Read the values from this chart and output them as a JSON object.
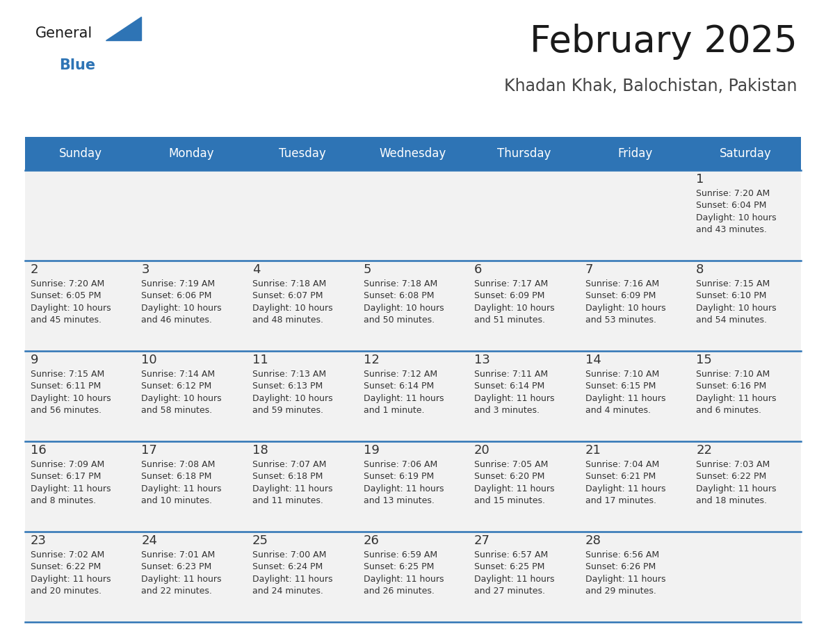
{
  "title": "February 2025",
  "subtitle": "Khadan Khak, Balochistan, Pakistan",
  "header_color": "#2E74B5",
  "header_text_color": "#FFFFFF",
  "cell_bg_color": "#F2F2F2",
  "cell_border_color": "#2E74B5",
  "text_color": "#333333",
  "day_headers": [
    "Sunday",
    "Monday",
    "Tuesday",
    "Wednesday",
    "Thursday",
    "Friday",
    "Saturday"
  ],
  "weeks": [
    [
      {
        "day": null,
        "info": null
      },
      {
        "day": null,
        "info": null
      },
      {
        "day": null,
        "info": null
      },
      {
        "day": null,
        "info": null
      },
      {
        "day": null,
        "info": null
      },
      {
        "day": null,
        "info": null
      },
      {
        "day": 1,
        "info": "Sunrise: 7:20 AM\nSunset: 6:04 PM\nDaylight: 10 hours\nand 43 minutes."
      }
    ],
    [
      {
        "day": 2,
        "info": "Sunrise: 7:20 AM\nSunset: 6:05 PM\nDaylight: 10 hours\nand 45 minutes."
      },
      {
        "day": 3,
        "info": "Sunrise: 7:19 AM\nSunset: 6:06 PM\nDaylight: 10 hours\nand 46 minutes."
      },
      {
        "day": 4,
        "info": "Sunrise: 7:18 AM\nSunset: 6:07 PM\nDaylight: 10 hours\nand 48 minutes."
      },
      {
        "day": 5,
        "info": "Sunrise: 7:18 AM\nSunset: 6:08 PM\nDaylight: 10 hours\nand 50 minutes."
      },
      {
        "day": 6,
        "info": "Sunrise: 7:17 AM\nSunset: 6:09 PM\nDaylight: 10 hours\nand 51 minutes."
      },
      {
        "day": 7,
        "info": "Sunrise: 7:16 AM\nSunset: 6:09 PM\nDaylight: 10 hours\nand 53 minutes."
      },
      {
        "day": 8,
        "info": "Sunrise: 7:15 AM\nSunset: 6:10 PM\nDaylight: 10 hours\nand 54 minutes."
      }
    ],
    [
      {
        "day": 9,
        "info": "Sunrise: 7:15 AM\nSunset: 6:11 PM\nDaylight: 10 hours\nand 56 minutes."
      },
      {
        "day": 10,
        "info": "Sunrise: 7:14 AM\nSunset: 6:12 PM\nDaylight: 10 hours\nand 58 minutes."
      },
      {
        "day": 11,
        "info": "Sunrise: 7:13 AM\nSunset: 6:13 PM\nDaylight: 10 hours\nand 59 minutes."
      },
      {
        "day": 12,
        "info": "Sunrise: 7:12 AM\nSunset: 6:14 PM\nDaylight: 11 hours\nand 1 minute."
      },
      {
        "day": 13,
        "info": "Sunrise: 7:11 AM\nSunset: 6:14 PM\nDaylight: 11 hours\nand 3 minutes."
      },
      {
        "day": 14,
        "info": "Sunrise: 7:10 AM\nSunset: 6:15 PM\nDaylight: 11 hours\nand 4 minutes."
      },
      {
        "day": 15,
        "info": "Sunrise: 7:10 AM\nSunset: 6:16 PM\nDaylight: 11 hours\nand 6 minutes."
      }
    ],
    [
      {
        "day": 16,
        "info": "Sunrise: 7:09 AM\nSunset: 6:17 PM\nDaylight: 11 hours\nand 8 minutes."
      },
      {
        "day": 17,
        "info": "Sunrise: 7:08 AM\nSunset: 6:18 PM\nDaylight: 11 hours\nand 10 minutes."
      },
      {
        "day": 18,
        "info": "Sunrise: 7:07 AM\nSunset: 6:18 PM\nDaylight: 11 hours\nand 11 minutes."
      },
      {
        "day": 19,
        "info": "Sunrise: 7:06 AM\nSunset: 6:19 PM\nDaylight: 11 hours\nand 13 minutes."
      },
      {
        "day": 20,
        "info": "Sunrise: 7:05 AM\nSunset: 6:20 PM\nDaylight: 11 hours\nand 15 minutes."
      },
      {
        "day": 21,
        "info": "Sunrise: 7:04 AM\nSunset: 6:21 PM\nDaylight: 11 hours\nand 17 minutes."
      },
      {
        "day": 22,
        "info": "Sunrise: 7:03 AM\nSunset: 6:22 PM\nDaylight: 11 hours\nand 18 minutes."
      }
    ],
    [
      {
        "day": 23,
        "info": "Sunrise: 7:02 AM\nSunset: 6:22 PM\nDaylight: 11 hours\nand 20 minutes."
      },
      {
        "day": 24,
        "info": "Sunrise: 7:01 AM\nSunset: 6:23 PM\nDaylight: 11 hours\nand 22 minutes."
      },
      {
        "day": 25,
        "info": "Sunrise: 7:00 AM\nSunset: 6:24 PM\nDaylight: 11 hours\nand 24 minutes."
      },
      {
        "day": 26,
        "info": "Sunrise: 6:59 AM\nSunset: 6:25 PM\nDaylight: 11 hours\nand 26 minutes."
      },
      {
        "day": 27,
        "info": "Sunrise: 6:57 AM\nSunset: 6:25 PM\nDaylight: 11 hours\nand 27 minutes."
      },
      {
        "day": 28,
        "info": "Sunrise: 6:56 AM\nSunset: 6:26 PM\nDaylight: 11 hours\nand 29 minutes."
      },
      {
        "day": null,
        "info": null
      }
    ]
  ],
  "logo_text_general": "General",
  "logo_text_blue": "Blue",
  "logo_color_general": "#1a1a1a",
  "logo_color_blue": "#2E74B5",
  "logo_triangle_color": "#2E74B5",
  "title_fontsize": 38,
  "subtitle_fontsize": 17,
  "header_fontsize": 12,
  "day_num_fontsize": 13,
  "info_fontsize": 9
}
